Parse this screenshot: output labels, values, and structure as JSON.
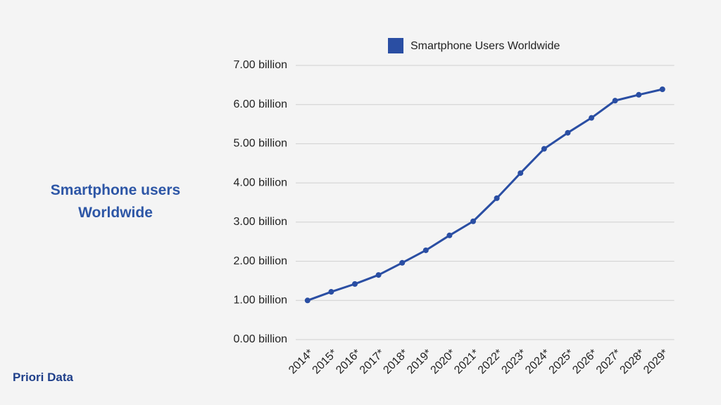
{
  "chart_data": {
    "type": "line",
    "title": "Smartphone users Worldwide",
    "categories": [
      "2014*",
      "2015*",
      "2016*",
      "2017*",
      "2018*",
      "2019*",
      "2020*",
      "2021*",
      "2022*",
      "2023*",
      "2024*",
      "2025*",
      "2026*",
      "2027*",
      "2028*",
      "2029*"
    ],
    "series": [
      {
        "name": "Smartphone Users Worldwide",
        "color": "#2a4ea3",
        "values": [
          1.0,
          1.22,
          1.42,
          1.65,
          1.96,
          2.28,
          2.66,
          3.02,
          3.61,
          4.25,
          4.87,
          5.28,
          5.66,
          6.1,
          6.25,
          6.39
        ]
      }
    ],
    "ylim": [
      0,
      7
    ],
    "yticks": [
      {
        "value": 0,
        "label": "0.00 billion"
      },
      {
        "value": 1,
        "label": "1.00 billion"
      },
      {
        "value": 2,
        "label": "2.00 billion"
      },
      {
        "value": 3,
        "label": "3.00 billion"
      },
      {
        "value": 4,
        "label": "4.00 billion"
      },
      {
        "value": 5,
        "label": "5.00 billion"
      },
      {
        "value": 6,
        "label": "6.00 billion"
      },
      {
        "value": 7,
        "label": "7.00 billion"
      }
    ],
    "grid": true,
    "legend": "top"
  },
  "logo": "Priori Data"
}
